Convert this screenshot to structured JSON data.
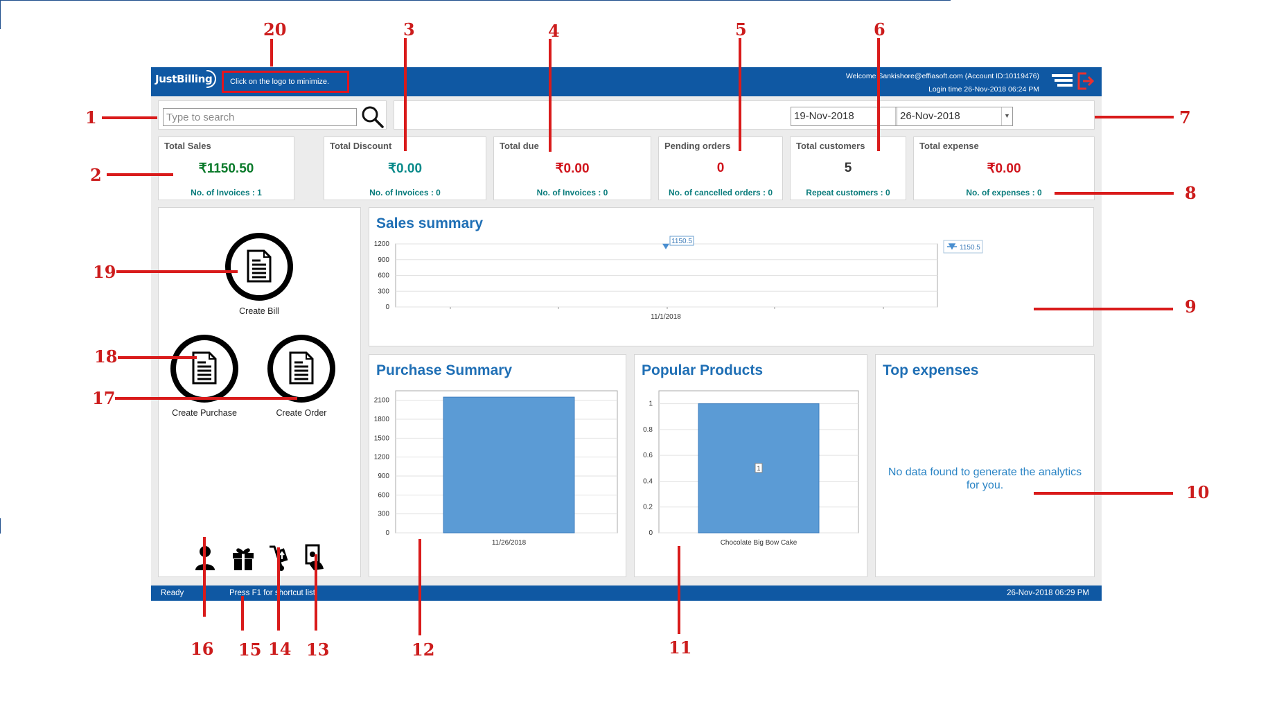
{
  "header": {
    "logo_text": "JustBilling",
    "minimize_hint": "Click on the logo to minimize.",
    "welcome_text": "Welcome Sankishore@effiasoft.com (Account ID:10119476)",
    "login_time": "Login time  26-Nov-2018 06:24 PM"
  },
  "search": {
    "placeholder": "Type to search"
  },
  "date_range": {
    "from": "19-Nov-2018",
    "to": "26-Nov-2018"
  },
  "cards": [
    {
      "label": "Total Sales",
      "value": "₹1150.50",
      "sub": "No. of Invoices : 1",
      "color": "#0a7a2a"
    },
    {
      "label": "Total Discount",
      "value": "₹0.00",
      "sub": "No. of Invoices : 0",
      "color": "#0a8a8a"
    },
    {
      "label": "Total due",
      "value": "₹0.00",
      "sub": "No. of Invoices : 0",
      "color": "#d0141c"
    },
    {
      "label": "Pending orders",
      "value": "0",
      "sub": "No. of cancelled orders : 0",
      "color": "#d0141c"
    },
    {
      "label": "Total customers",
      "value": "5",
      "sub": "Repeat customers :  0",
      "color": "#333333"
    },
    {
      "label": "Total expense",
      "value": "₹0.00",
      "sub": "No. of expenses : 0",
      "color": "#d0141c"
    }
  ],
  "shortcuts": {
    "create_bill": "Create Bill",
    "create_purchase": "Create Purchase",
    "create_order": "Create Order"
  },
  "bottom_icons": [
    "customer-icon",
    "gift-icon",
    "trolley-icon",
    "cash-hand-icon"
  ],
  "panels": {
    "sales_summary_title": "Sales summary",
    "purchase_summary_title": "Purchase Summary",
    "popular_products_title": "Popular Products",
    "top_expenses_title": "Top expenses",
    "top_expenses_empty": "No data found to generate the analytics for you."
  },
  "status": {
    "ready": "Ready",
    "hint": "Press F1 for shortcut list",
    "datetime": "26-Nov-2018 06:29 PM"
  },
  "annotations": [
    "1",
    "2",
    "3",
    "4",
    "5",
    "6",
    "7",
    "8",
    "9",
    "10",
    "11",
    "12",
    "13",
    "14",
    "15",
    "16",
    "17",
    "18",
    "19",
    "20"
  ],
  "chart_data": [
    {
      "type": "line",
      "title": "Sales summary",
      "x": [
        "11/1/2018"
      ],
      "series": [
        {
          "name": "1150.5",
          "values": [
            1150.5
          ]
        }
      ],
      "data_labels": [
        "1150.5"
      ],
      "ylim": [
        0,
        1200
      ],
      "yticks": [
        0,
        300,
        600,
        900,
        1200
      ],
      "legend": "top-right",
      "grid": true
    },
    {
      "type": "bar",
      "title": "Purchase Summary",
      "categories": [
        "11/26/2018"
      ],
      "values": [
        2150
      ],
      "ylim": [
        0,
        2250
      ],
      "yticks": [
        0,
        300,
        600,
        900,
        1200,
        1500,
        1800,
        2100
      ],
      "grid": true
    },
    {
      "type": "bar",
      "title": "Popular Products",
      "categories": [
        "Chocolate Big Bow Cake"
      ],
      "values": [
        1
      ],
      "data_labels": [
        "1"
      ],
      "ylim": [
        0,
        1.1
      ],
      "yticks": [
        0,
        0.2,
        0.4,
        0.6,
        0.8,
        1
      ],
      "grid": true
    }
  ]
}
